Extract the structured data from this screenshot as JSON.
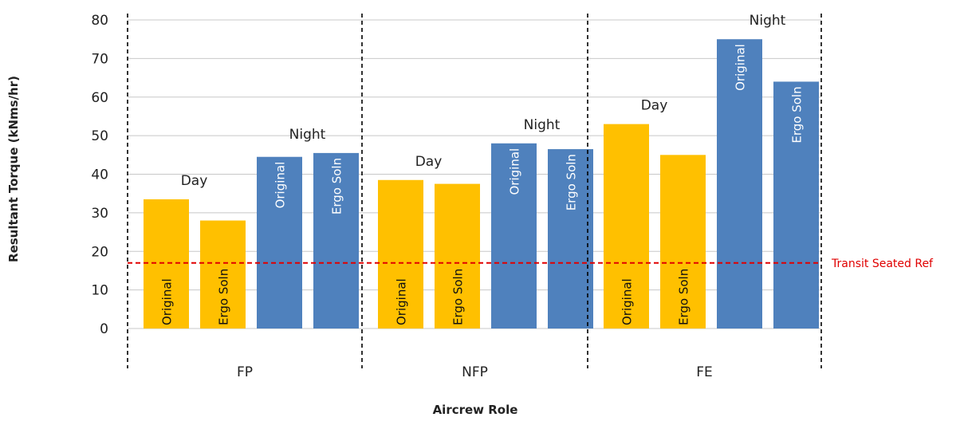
{
  "chart_data": {
    "type": "bar",
    "title": "",
    "xlabel": "Aircrew Role",
    "ylabel": "Resultant Torque (kNms/hr)",
    "ylim": [
      0,
      80
    ],
    "yticks": [
      0,
      10,
      20,
      30,
      40,
      50,
      60,
      70,
      80
    ],
    "grid": true,
    "categories": [
      "FP",
      "NFP",
      "FE"
    ],
    "series": [
      {
        "group": "Day",
        "label": "Original",
        "color": "#FFC000",
        "values": [
          33.5,
          38.5,
          53
        ]
      },
      {
        "group": "Day",
        "label": "Ergo Soln",
        "color": "#FFC000",
        "values": [
          28,
          37.5,
          45
        ]
      },
      {
        "group": "Night",
        "label": "Original",
        "color": "#4F81BD",
        "values": [
          44.5,
          48,
          75
        ]
      },
      {
        "group": "Night",
        "label": "Ergo Soln",
        "color": "#4F81BD",
        "values": [
          45.5,
          46.5,
          64
        ]
      }
    ],
    "group_labels": [
      "Day",
      "Night"
    ],
    "reference_line": {
      "label": "Transit Seated Ref",
      "value": 17,
      "color": "#E00000"
    }
  }
}
